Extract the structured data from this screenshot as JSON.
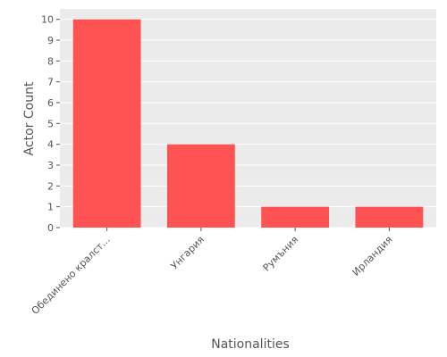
{
  "chart_data": {
    "type": "bar",
    "categories": [
      "Обединено кралст...",
      "Унгария",
      "Румъния",
      "Ирландия"
    ],
    "values": [
      10,
      4,
      1,
      1
    ],
    "xlabel": "Nationalities",
    "ylabel": "Actor Count",
    "ylim": [
      0,
      10.5
    ],
    "yticks": [
      0,
      1,
      2,
      3,
      4,
      5,
      6,
      7,
      8,
      9,
      10
    ],
    "grid": true,
    "bar_color": "#ff5252",
    "background_color": "#ebebeb"
  }
}
